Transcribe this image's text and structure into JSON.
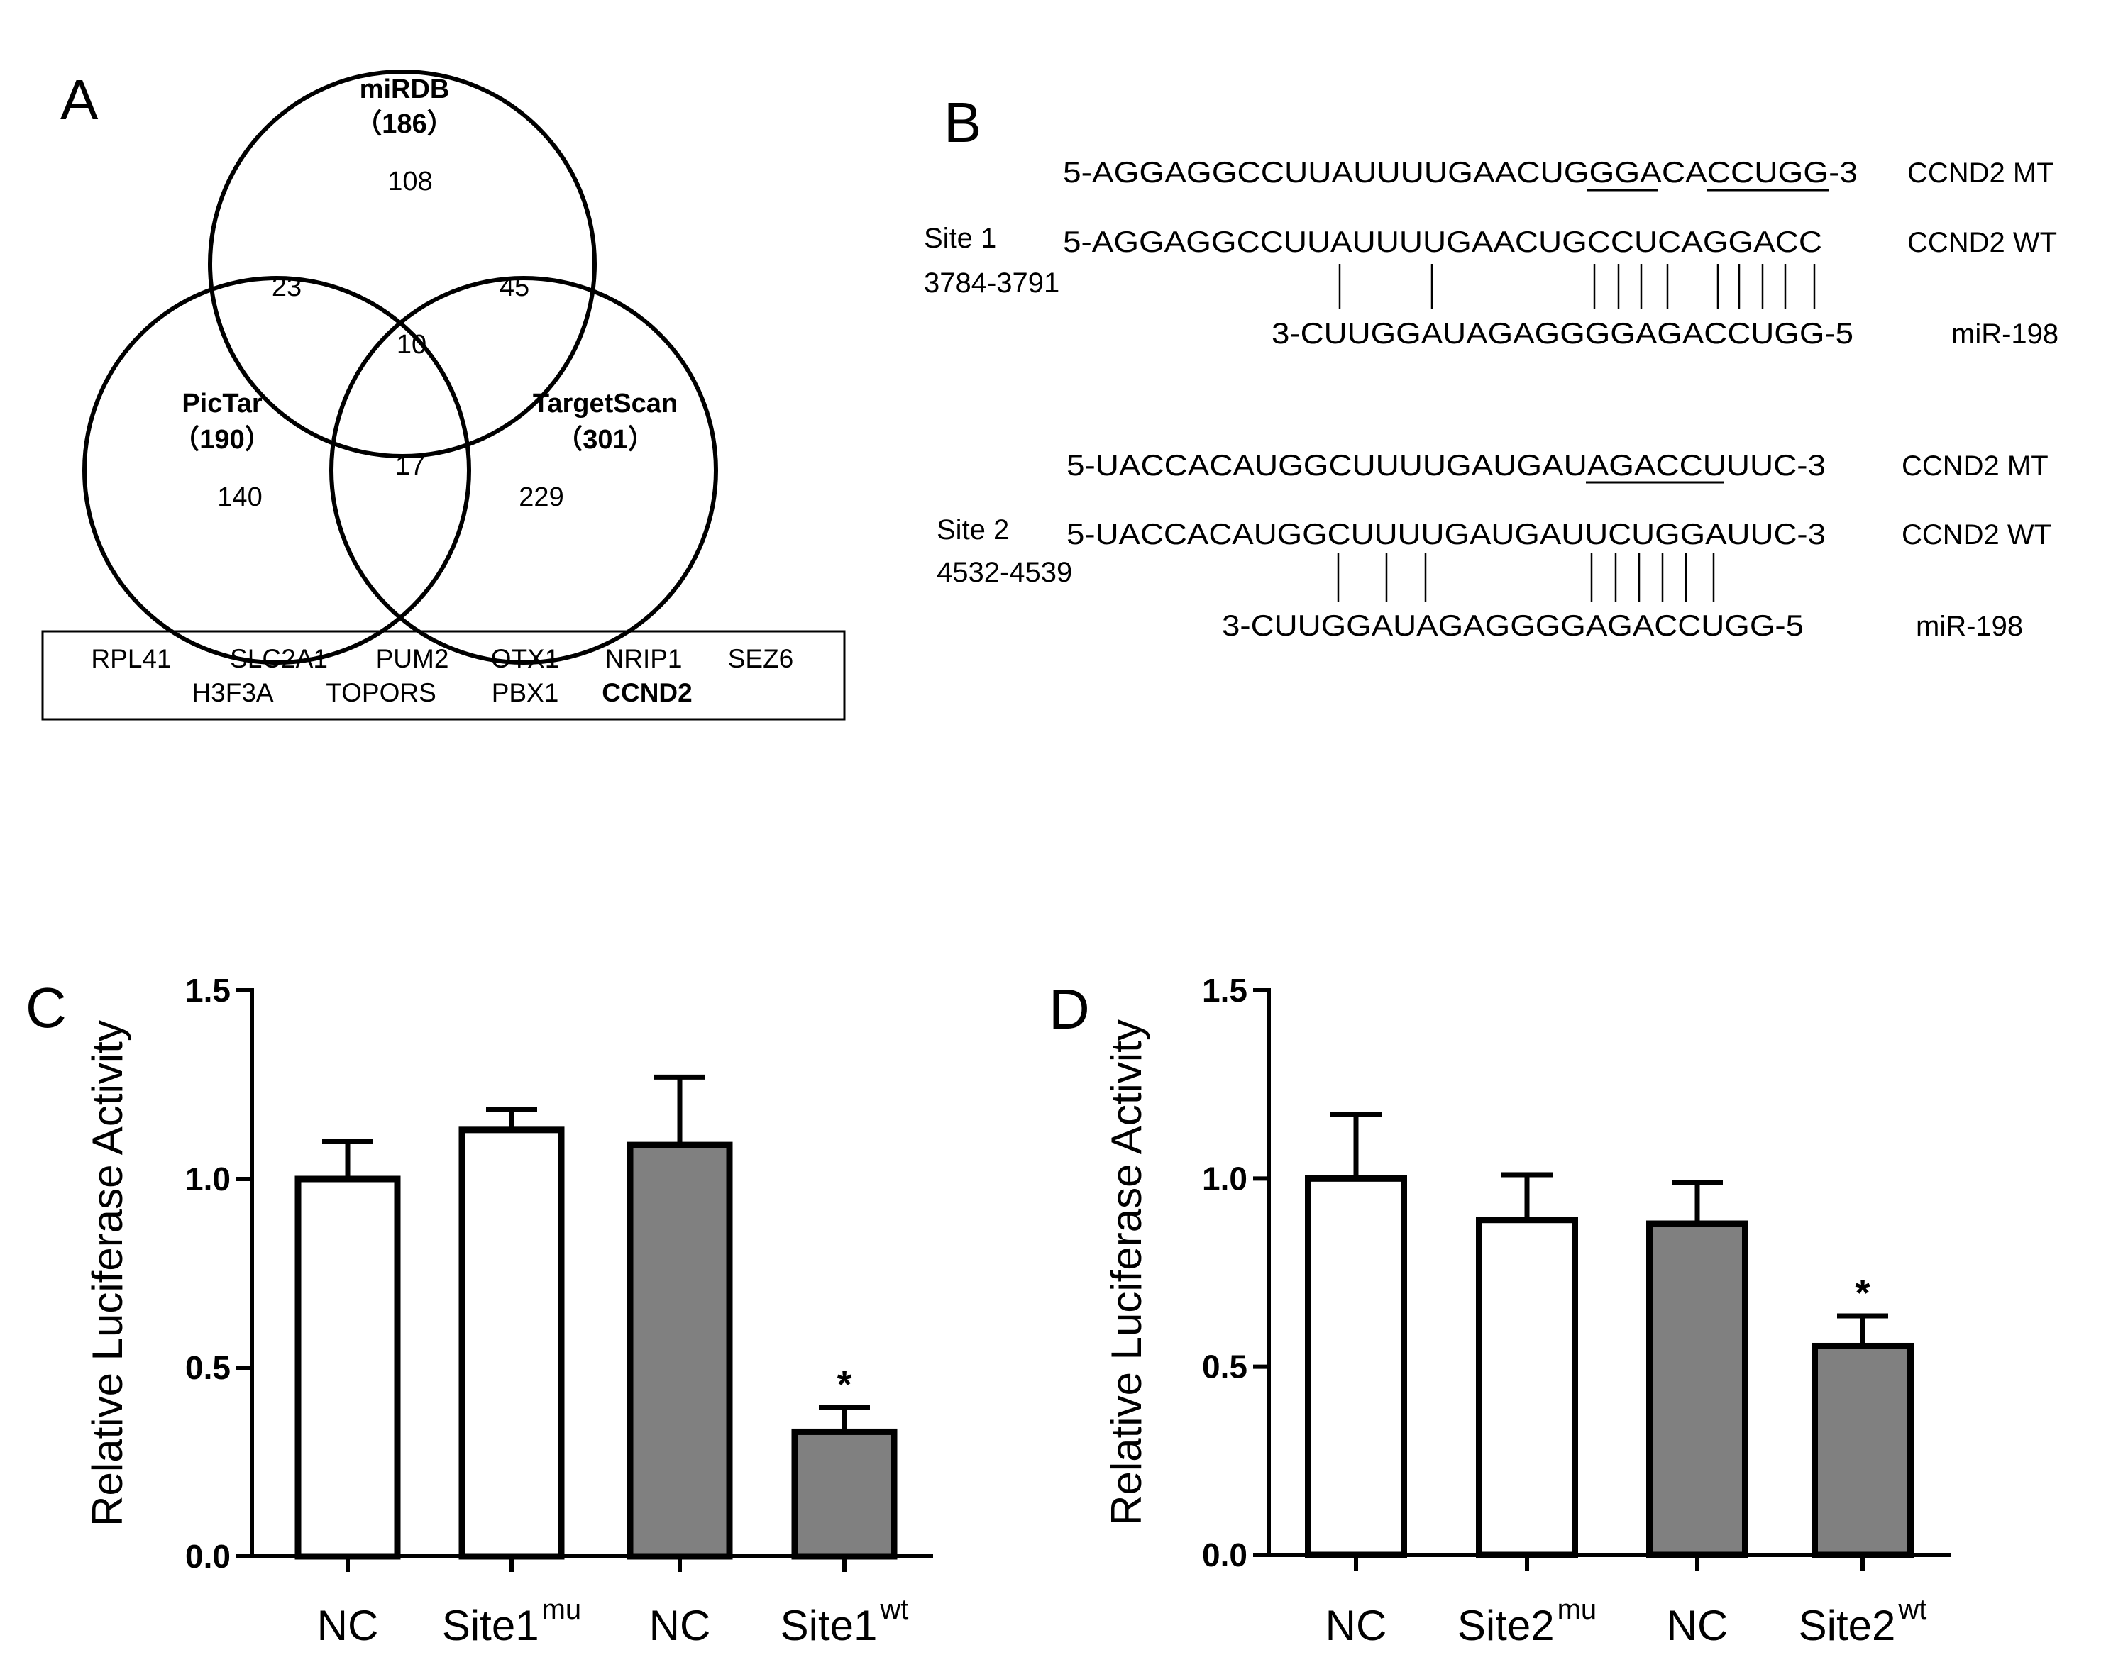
{
  "panels": {
    "A": {
      "letter": "A",
      "venn": {
        "mirdb": {
          "name": "miRDB",
          "total": "（186）"
        },
        "pictar": {
          "name": "PicTar",
          "total": "（190）"
        },
        "targetscan": {
          "name": "TargetScan",
          "total": "（301）"
        },
        "regions": {
          "mirdb_only": "108",
          "mirdb_pictar": "23",
          "mirdb_targetscan": "45",
          "all_three": "10",
          "pictar_only": "140",
          "pictar_targetscan": "17",
          "targetscan_only": "229"
        },
        "all_three_color": "#808080"
      },
      "genes_row1": [
        "RPL41",
        "SLC2A1",
        "PUM2",
        "OTX1",
        "NRIP1",
        "SEZ6"
      ],
      "genes_row2": [
        "H3F3A",
        "TOPORS",
        "PBX1",
        "CCND2"
      ],
      "highlight_gene_color": "#707070"
    },
    "B": {
      "letter": "B",
      "site1": {
        "name": "Site 1",
        "range": "3784-3791",
        "mt_seq": "5-AGGAGGCCUUAUUUUGAACUGGGACACCUGG-3",
        "mt_label": "CCND2  MT",
        "wt_seq": "5-AGGAGGCCUUAUUUUGAACUGCCUCAGGACC",
        "wt_label": "CCND2  WT",
        "mir_seq": "3-CUUGGAUAGAGGGGAGACCUGG-5",
        "mir_label": "miR-198"
      },
      "site2": {
        "name": "Site 2",
        "range": "4532-4539",
        "mt_seq": "5-UACCACAUGGCUUUUGAUGAUAGACCUUUC-3",
        "mt_label": "CCND2  MT",
        "wt_seq": "5-UACCACAUGGCUUUUGAUGAUUCUGGAUUC-3",
        "wt_label": "CCND2  WT",
        "mir_seq": "3-CUUGGAUAGAGGGGAGACCUGG-5",
        "mir_label": "miR-198"
      }
    }
  },
  "chart_data": [
    {
      "panel": "C",
      "type": "bar",
      "ylabel": "Relative Luciferase Activity",
      "ylim": [
        0,
        1.5
      ],
      "yticks": [
        "0.0",
        "0.5",
        "1.0",
        "1.5"
      ],
      "categories": [
        {
          "base": "NC",
          "sup": ""
        },
        {
          "base": "Site1",
          "sup": "mu"
        },
        {
          "base": "NC",
          "sup": ""
        },
        {
          "base": "Site1",
          "sup": "wt"
        }
      ],
      "values": [
        1.0,
        1.13,
        1.09,
        0.33
      ],
      "errors": [
        0.1,
        0.055,
        0.18,
        0.065
      ],
      "fills": [
        "#ffffff",
        "#ffffff",
        "#808080",
        "#808080"
      ],
      "significance": [
        "",
        "",
        "",
        "*"
      ]
    },
    {
      "panel": "D",
      "type": "bar",
      "ylabel": "Relative Luciferase Activity",
      "ylim": [
        0,
        1.5
      ],
      "yticks": [
        "0.0",
        "0.5",
        "1.0",
        "1.5"
      ],
      "categories": [
        {
          "base": "NC",
          "sup": ""
        },
        {
          "base": "Site2",
          "sup": "mu"
        },
        {
          "base": "NC",
          "sup": ""
        },
        {
          "base": "Site2",
          "sup": "wt"
        }
      ],
      "values": [
        1.0,
        0.89,
        0.88,
        0.555
      ],
      "errors": [
        0.17,
        0.12,
        0.11,
        0.08
      ],
      "fills": [
        "#ffffff",
        "#ffffff",
        "#808080",
        "#808080"
      ],
      "significance": [
        "",
        "",
        "",
        "*"
      ]
    }
  ]
}
